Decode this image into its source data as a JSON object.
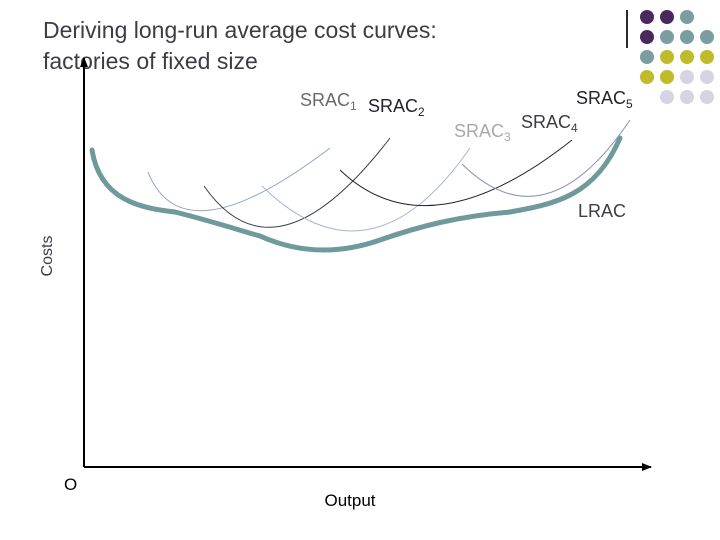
{
  "title": {
    "line1": "Deriving long-run average cost curves:",
    "line2": "factories of fixed size"
  },
  "axes": {
    "y_label": "Costs",
    "x_label": "Output",
    "origin_label": "O"
  },
  "curves": {
    "srac1": {
      "name": "SRAC",
      "sub": "1"
    },
    "srac2": {
      "name": "SRAC",
      "sub": "2"
    },
    "srac3": {
      "name": "SRAC",
      "sub": "3"
    },
    "srac4": {
      "name": "SRAC",
      "sub": "4"
    },
    "srac5": {
      "name": "SRAC",
      "sub": "5"
    },
    "lrac": {
      "name": "LRAC"
    }
  },
  "colors": {
    "title": "#3c3c46",
    "axis": "#000000",
    "lrac": "#6e9a9b",
    "srac1": "#8fa3c6",
    "srac2": "#3a3a52",
    "srac3": "#a8b1d4",
    "srac4": "#222233",
    "srac5": "#8a8fb8",
    "dot_purple": "#4a2a5c",
    "dot_teal": "#7a9ea0",
    "dot_olive": "#c0bb2a",
    "dot_lavender": "#d6d3e3"
  },
  "decor": {
    "dot_pattern": "dot-grid"
  }
}
